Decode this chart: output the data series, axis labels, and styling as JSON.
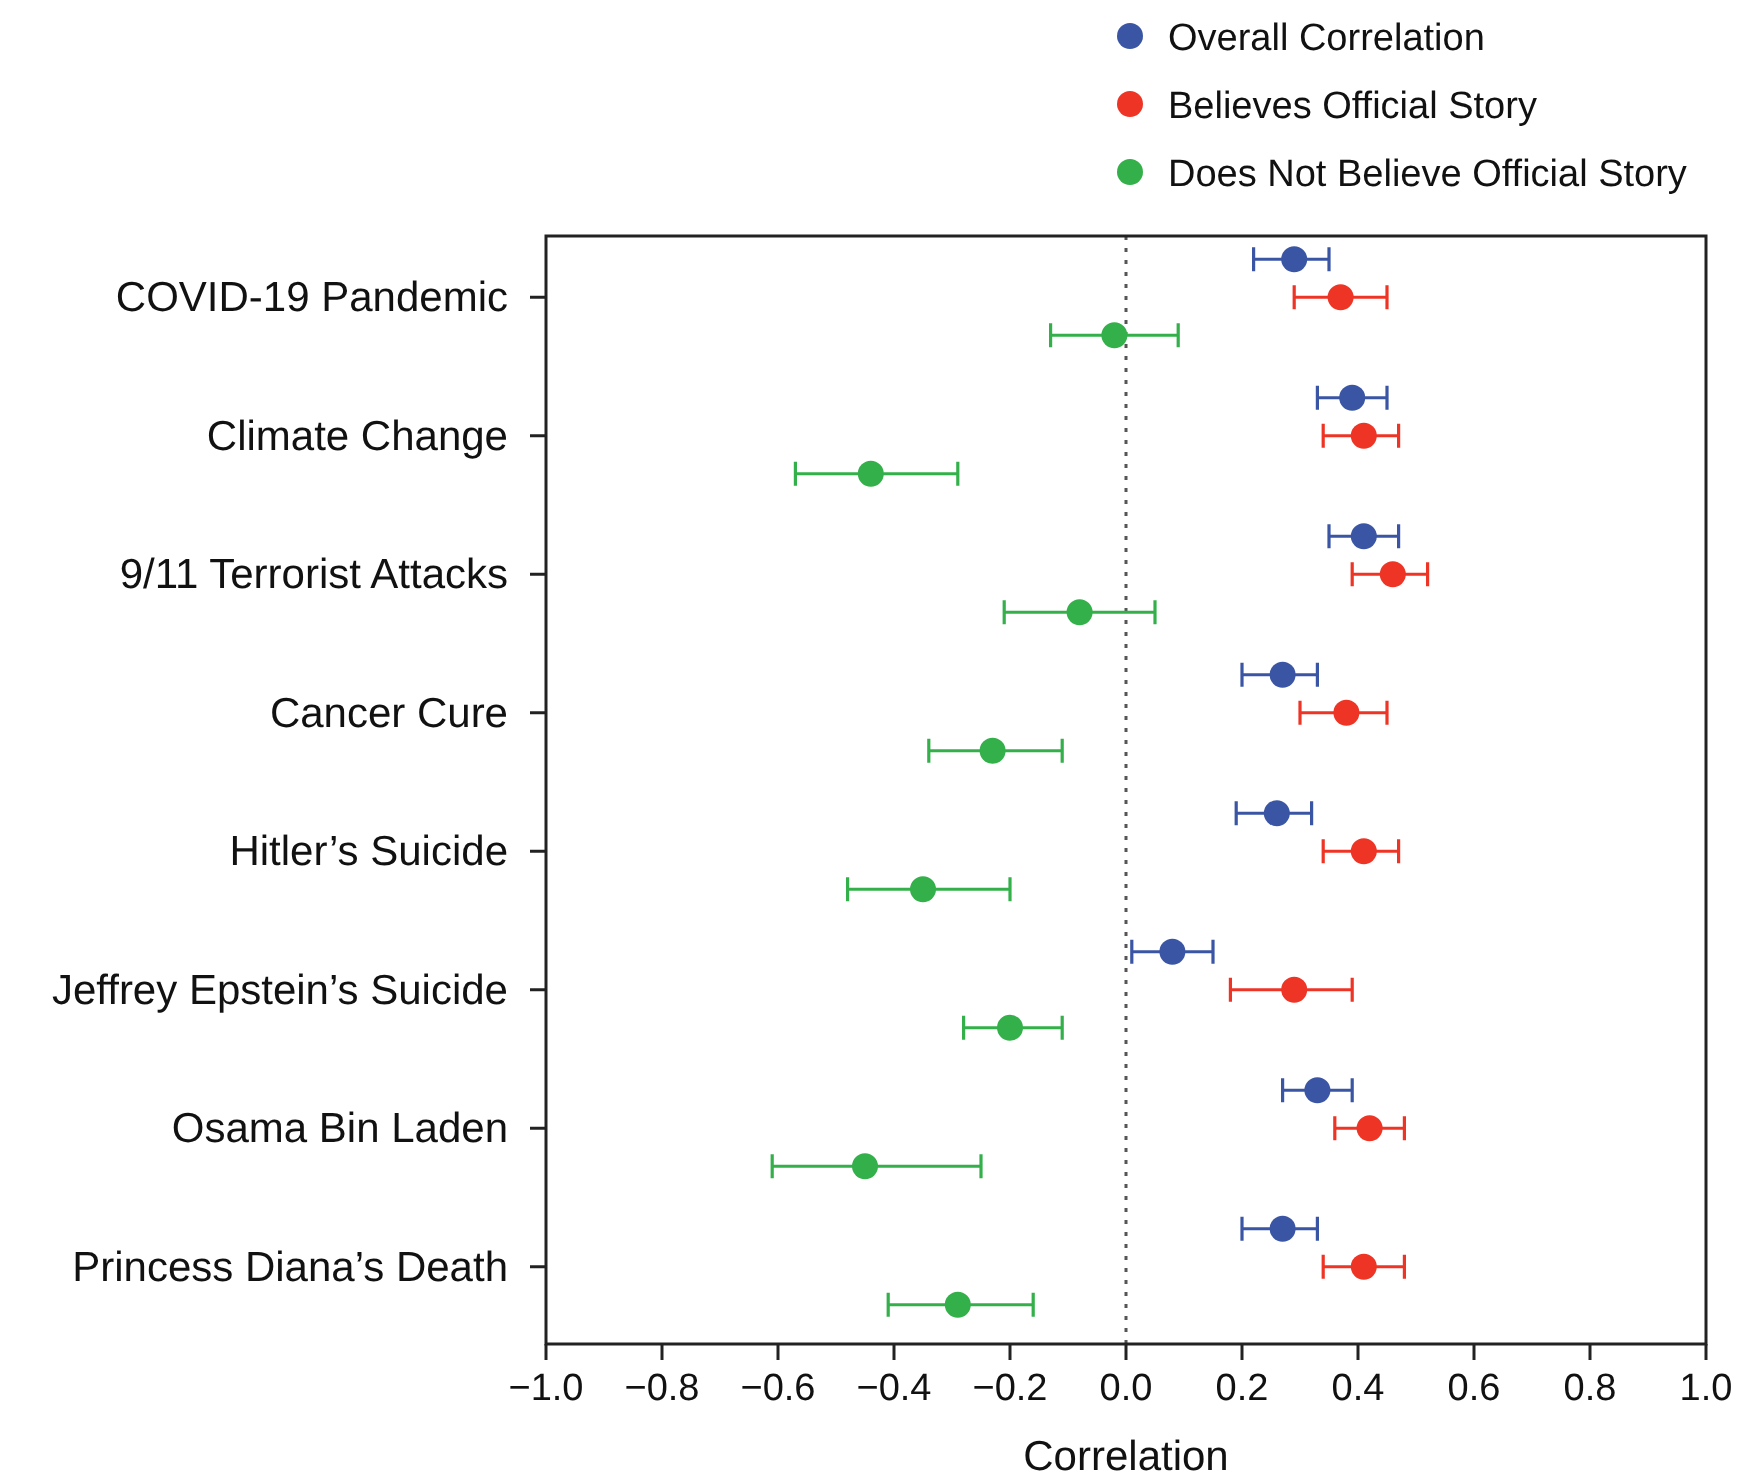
{
  "chart_data": {
    "type": "scatter",
    "orientation": "horizontal",
    "xlabel": "Correlation",
    "categories": [
      "COVID-19 Pandemic",
      "Climate Change",
      "9/11 Terrorist Attacks",
      "Cancer Cure",
      "Hitler’s Suicide",
      "Jeffrey Epstein’s Suicide",
      "Osama Bin Laden",
      "Princess Diana’s Death"
    ],
    "series": [
      {
        "name": "Overall Correlation",
        "color": "#3a55a4",
        "values": [
          0.29,
          0.39,
          0.41,
          0.27,
          0.26,
          0.08,
          0.33,
          0.27
        ],
        "errors": [
          [
            0.22,
            0.35
          ],
          [
            0.33,
            0.45
          ],
          [
            0.35,
            0.47
          ],
          [
            0.2,
            0.33
          ],
          [
            0.19,
            0.32
          ],
          [
            0.01,
            0.15
          ],
          [
            0.27,
            0.39
          ],
          [
            0.2,
            0.33
          ]
        ]
      },
      {
        "name": "Believes Official Story",
        "color": "#ee3424",
        "values": [
          0.37,
          0.41,
          0.46,
          0.38,
          0.41,
          0.29,
          0.42,
          0.41
        ],
        "errors": [
          [
            0.29,
            0.45
          ],
          [
            0.34,
            0.47
          ],
          [
            0.39,
            0.52
          ],
          [
            0.3,
            0.45
          ],
          [
            0.34,
            0.47
          ],
          [
            0.18,
            0.39
          ],
          [
            0.36,
            0.48
          ],
          [
            0.34,
            0.48
          ]
        ]
      },
      {
        "name": "Does Not Believe Official Story",
        "color": "#33b04a",
        "values": [
          -0.02,
          -0.44,
          -0.08,
          -0.23,
          -0.35,
          -0.2,
          -0.45,
          -0.29
        ],
        "errors": [
          [
            -0.13,
            0.09
          ],
          [
            -0.57,
            -0.29
          ],
          [
            -0.21,
            0.05
          ],
          [
            -0.34,
            -0.11
          ],
          [
            -0.48,
            -0.2
          ],
          [
            -0.28,
            -0.11
          ],
          [
            -0.61,
            -0.25
          ],
          [
            -0.41,
            -0.16
          ]
        ]
      }
    ],
    "xlim": [
      -1,
      1
    ],
    "xticks": [
      {
        "value": -1,
        "label": "−1.0"
      },
      {
        "value": -0.8,
        "label": "−0.8"
      },
      {
        "value": -0.6,
        "label": "−0.6"
      },
      {
        "value": -0.4,
        "label": "−0.4"
      },
      {
        "value": -0.2,
        "label": "−0.2"
      },
      {
        "value": 0,
        "label": "0.0"
      },
      {
        "value": 0.2,
        "label": "0.2"
      },
      {
        "value": 0.4,
        "label": "0.4"
      },
      {
        "value": 0.6,
        "label": "0.6"
      },
      {
        "value": 0.8,
        "label": "0.8"
      },
      {
        "value": 1,
        "label": "1.0"
      }
    ],
    "ref_lines": [
      {
        "axis": "x",
        "value": 0,
        "color": "#555555",
        "line_style": "dotted"
      }
    ],
    "marker": "circle",
    "legend": "top right",
    "grid": false
  }
}
